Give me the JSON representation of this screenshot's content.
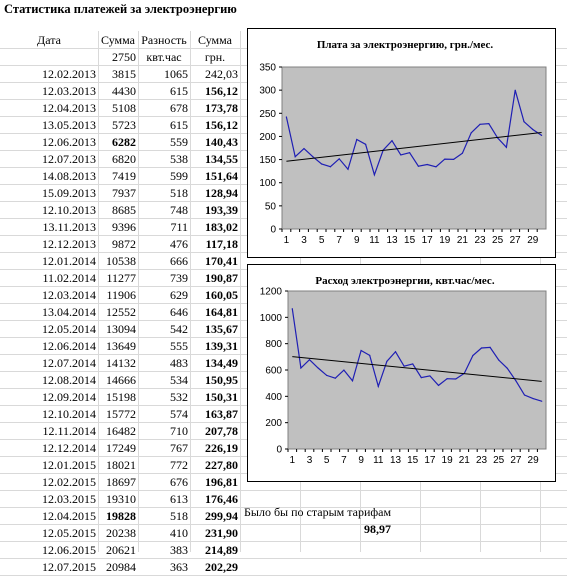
{
  "sheet_title": "Статистика платежей за электроэнергию",
  "headers": [
    "Дата",
    "Сумма",
    "Разность",
    "Сумма"
  ],
  "subheaders": {
    "sum": "2750",
    "diff": "квт.час",
    "amount": "грн."
  },
  "rows": [
    {
      "date": "12.02.2013",
      "sum": "3815",
      "diff": "1065",
      "amount": "242,03",
      "bold_sum": false,
      "bold_amount": false
    },
    {
      "date": "12.03.2013",
      "sum": "4430",
      "diff": "615",
      "amount": "156,12",
      "bold_sum": false,
      "bold_amount": true
    },
    {
      "date": "12.04.2013",
      "sum": "5108",
      "diff": "678",
      "amount": "173,78",
      "bold_sum": false,
      "bold_amount": true
    },
    {
      "date": "13.05.2013",
      "sum": "5723",
      "diff": "615",
      "amount": "156,12",
      "bold_sum": false,
      "bold_amount": true
    },
    {
      "date": "12.06.2013",
      "sum": "6282",
      "diff": "559",
      "amount": "140,43",
      "bold_sum": true,
      "bold_amount": true
    },
    {
      "date": "12.07.2013",
      "sum": "6820",
      "diff": "538",
      "amount": "134,55",
      "bold_sum": false,
      "bold_amount": true
    },
    {
      "date": "14.08.2013",
      "sum": "7419",
      "diff": "599",
      "amount": "151,64",
      "bold_sum": false,
      "bold_amount": true
    },
    {
      "date": "15.09.2013",
      "sum": "7937",
      "diff": "518",
      "amount": "128,94",
      "bold_sum": false,
      "bold_amount": true
    },
    {
      "date": "12.10.2013",
      "sum": "8685",
      "diff": "748",
      "amount": "193,39",
      "bold_sum": false,
      "bold_amount": true
    },
    {
      "date": "13.11.2013",
      "sum": "9396",
      "diff": "711",
      "amount": "183,02",
      "bold_sum": false,
      "bold_amount": true
    },
    {
      "date": "12.12.2013",
      "sum": "9872",
      "diff": "476",
      "amount": "117,18",
      "bold_sum": false,
      "bold_amount": true
    },
    {
      "date": "12.01.2014",
      "sum": "10538",
      "diff": "666",
      "amount": "170,41",
      "bold_sum": false,
      "bold_amount": true
    },
    {
      "date": "11.02.2014",
      "sum": "11277",
      "diff": "739",
      "amount": "190,87",
      "bold_sum": false,
      "bold_amount": true
    },
    {
      "date": "12.03.2014",
      "sum": "11906",
      "diff": "629",
      "amount": "160,05",
      "bold_sum": false,
      "bold_amount": true
    },
    {
      "date": "13.04.2014",
      "sum": "12552",
      "diff": "646",
      "amount": "164,81",
      "bold_sum": false,
      "bold_amount": true
    },
    {
      "date": "12.05.2014",
      "sum": "13094",
      "diff": "542",
      "amount": "135,67",
      "bold_sum": false,
      "bold_amount": true
    },
    {
      "date": "12.06.2014",
      "sum": "13649",
      "diff": "555",
      "amount": "139,31",
      "bold_sum": false,
      "bold_amount": true
    },
    {
      "date": "12.07.2014",
      "sum": "14132",
      "diff": "483",
      "amount": "134,49",
      "bold_sum": false,
      "bold_amount": true
    },
    {
      "date": "12.08.2014",
      "sum": "14666",
      "diff": "534",
      "amount": "150,95",
      "bold_sum": false,
      "bold_amount": true
    },
    {
      "date": "12.09.2014",
      "sum": "15198",
      "diff": "532",
      "amount": "150,31",
      "bold_sum": false,
      "bold_amount": true
    },
    {
      "date": "12.10.2014",
      "sum": "15772",
      "diff": "574",
      "amount": "163,87",
      "bold_sum": false,
      "bold_amount": true
    },
    {
      "date": "12.11.2014",
      "sum": "16482",
      "diff": "710",
      "amount": "207,78",
      "bold_sum": false,
      "bold_amount": true
    },
    {
      "date": "12.12.2014",
      "sum": "17249",
      "diff": "767",
      "amount": "226,19",
      "bold_sum": false,
      "bold_amount": true
    },
    {
      "date": "12.01.2015",
      "sum": "18021",
      "diff": "772",
      "amount": "227,80",
      "bold_sum": false,
      "bold_amount": true
    },
    {
      "date": "12.02.2015",
      "sum": "18697",
      "diff": "676",
      "amount": "196,81",
      "bold_sum": false,
      "bold_amount": true
    },
    {
      "date": "12.03.2015",
      "sum": "19310",
      "diff": "613",
      "amount": "176,46",
      "bold_sum": false,
      "bold_amount": true
    },
    {
      "date": "12.04.2015",
      "sum": "19828",
      "diff": "518",
      "amount": "299,94",
      "bold_sum": true,
      "bold_amount": true
    },
    {
      "date": "12.05.2015",
      "sum": "20238",
      "diff": "410",
      "amount": "231,90",
      "bold_sum": false,
      "bold_amount": true
    },
    {
      "date": "12.06.2015",
      "sum": "20621",
      "diff": "383",
      "amount": "214,89",
      "bold_sum": false,
      "bold_amount": true
    },
    {
      "date": "12.07.2015",
      "sum": "20984",
      "diff": "363",
      "amount": "202,29",
      "bold_sum": false,
      "bold_amount": true
    }
  ],
  "note": {
    "text": "Было бы по старым тарифам",
    "value": "98,97"
  },
  "colors": {
    "plot_bg": "#c0c0c0",
    "series": "#1f1fb4",
    "trend": "#000000",
    "grid": "#d9d9d9"
  },
  "chart_data": [
    {
      "type": "line",
      "title": "Плата за электроэнергию, грн./мес.",
      "x": [
        1,
        2,
        3,
        4,
        5,
        6,
        7,
        8,
        9,
        10,
        11,
        12,
        13,
        14,
        15,
        16,
        17,
        18,
        19,
        20,
        21,
        22,
        23,
        24,
        25,
        26,
        27,
        28,
        29,
        30
      ],
      "xticks": [
        "1",
        "3",
        "5",
        "7",
        "9",
        "11",
        "13",
        "15",
        "17",
        "19",
        "21",
        "23",
        "25",
        "27",
        "29"
      ],
      "series": [
        {
          "values": [
            242.03,
            156.12,
            173.78,
            156.12,
            140.43,
            134.55,
            151.64,
            128.94,
            193.39,
            183.02,
            117.18,
            170.41,
            190.87,
            160.05,
            164.81,
            135.67,
            139.31,
            134.49,
            150.95,
            150.31,
            163.87,
            207.78,
            226.19,
            227.8,
            196.81,
            176.46,
            299.94,
            231.9,
            214.89,
            202.29
          ]
        }
      ],
      "trendline": "linear",
      "ylim": [
        0,
        350
      ],
      "yticks": [
        "0",
        "50",
        "100",
        "150",
        "200",
        "250",
        "300",
        "350"
      ],
      "grid": false,
      "xlabel": "",
      "ylabel": ""
    },
    {
      "type": "line",
      "title": "Расход электроэнергии, квт.час/мес.",
      "x": [
        1,
        2,
        3,
        4,
        5,
        6,
        7,
        8,
        9,
        10,
        11,
        12,
        13,
        14,
        15,
        16,
        17,
        18,
        19,
        20,
        21,
        22,
        23,
        24,
        25,
        26,
        27,
        28,
        29,
        30
      ],
      "xticks": [
        "1",
        "3",
        "5",
        "7",
        "9",
        "11",
        "13",
        "15",
        "17",
        "19",
        "21",
        "23",
        "25",
        "27",
        "29"
      ],
      "series": [
        {
          "values": [
            1065,
            615,
            678,
            615,
            559,
            538,
            599,
            518,
            748,
            711,
            476,
            666,
            739,
            629,
            646,
            542,
            555,
            483,
            534,
            532,
            574,
            710,
            767,
            772,
            676,
            613,
            518,
            410,
            383,
            363
          ]
        }
      ],
      "trendline": "linear",
      "ylim": [
        0,
        1200
      ],
      "yticks": [
        "0",
        "200",
        "400",
        "600",
        "800",
        "1000",
        "1200"
      ],
      "grid": false,
      "xlabel": "",
      "ylabel": ""
    }
  ]
}
